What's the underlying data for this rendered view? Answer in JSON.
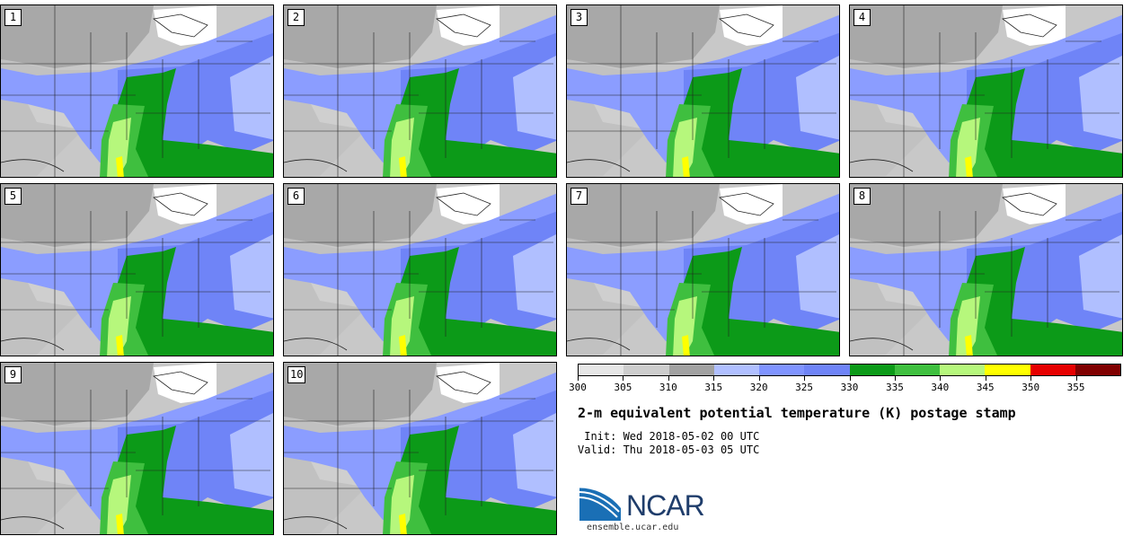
{
  "panels": [
    {
      "label": "1"
    },
    {
      "label": "2"
    },
    {
      "label": "3"
    },
    {
      "label": "4"
    },
    {
      "label": "5"
    },
    {
      "label": "6"
    },
    {
      "label": "7"
    },
    {
      "label": "8"
    },
    {
      "label": "9"
    },
    {
      "label": "10"
    }
  ],
  "colorbar": {
    "colors": [
      "#e6e6e6",
      "#cdcdcd",
      "#a1a1a1",
      "#b0bfff",
      "#8094ff",
      "#6f84f7",
      "#0c9a18",
      "#3fbf3f",
      "#b6f77c",
      "#ffff00",
      "#e60000",
      "#800000"
    ],
    "tick_labels": [
      "300",
      "305",
      "310",
      "315",
      "320",
      "325",
      "330",
      "335",
      "340",
      "345",
      "350",
      "355"
    ]
  },
  "title": "2-m equivalent potential temperature (K) postage stamp",
  "init": " Init: Wed 2018-05-02 00 UTC",
  "valid": "Valid: Thu 2018-05-03 05 UTC",
  "logo": {
    "text": "NCAR"
  },
  "url": "ensemble.ucar.edu"
}
